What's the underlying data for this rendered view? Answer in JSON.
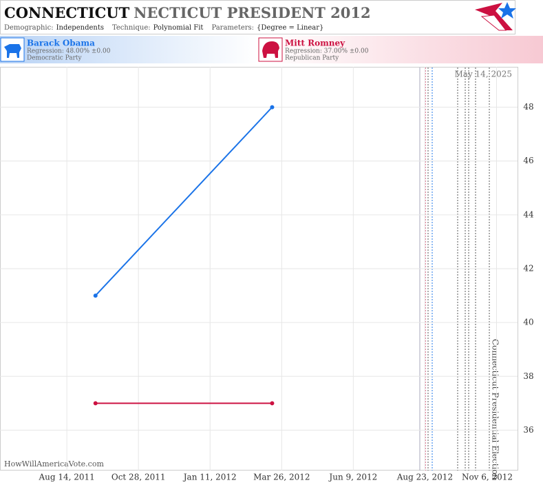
{
  "chart_data": {
    "type": "line",
    "title": "CONNECTICUT",
    "title_suffix": "NECTICUT PRESIDENT 2012",
    "info": [
      {
        "label": "Demographic:",
        "value": "Independents"
      },
      {
        "label": "Technique:",
        "value": "Polynomial Fit"
      },
      {
        "label": "Parameters:",
        "value": "{Degree = Linear}"
      }
    ],
    "x": [
      "2011-09-13",
      "2012-03-16"
    ],
    "series": [
      {
        "name": "Barack Obama",
        "color": "#1a73e8",
        "values": [
          41,
          48
        ],
        "regression": "Regression: 48.00% ±0.00",
        "party": "Democratic Party"
      },
      {
        "name": "Mitt Romney",
        "color": "#cc1141",
        "values": [
          37,
          37
        ],
        "regression": "Regression: 37.00% ±0.00",
        "party": "Republican Party"
      }
    ],
    "xlim": [
      "2011-06-05",
      "2012-11-28"
    ],
    "xticks": [
      {
        "value": "2011-08-14",
        "label": "Aug 14, 2011"
      },
      {
        "value": "2011-10-28",
        "label": "Oct 28, 2011"
      },
      {
        "value": "2012-01-11",
        "label": "Jan 11, 2012"
      },
      {
        "value": "2012-03-26",
        "label": "Mar 26, 2012"
      },
      {
        "value": "2012-06-09",
        "label": "Jun 9, 2012"
      },
      {
        "value": "2012-08-23",
        "label": "Aug 23, 2012"
      },
      {
        "value": "2012-11-06",
        "label": "Nov 6, 2012"
      }
    ],
    "ylim": [
      34.5,
      49.5
    ],
    "yticks": [
      36,
      38,
      40,
      42,
      44,
      46,
      48
    ],
    "grid": true,
    "annotations": {
      "date": "May 14, 2025",
      "event": "Connecticut Presidential Election",
      "source": "HowWillAmericaVote.com"
    }
  }
}
